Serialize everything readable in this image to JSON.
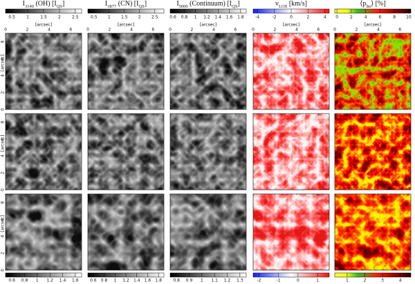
{
  "columns": [
    {
      "title": [
        {
          "text": "I"
        },
        {
          "sub": "3140"
        },
        {
          "text": " (OH) [I"
        },
        {
          "sub": "QS"
        },
        {
          "text": "]"
        }
      ],
      "colormap": "gray",
      "top_colorbar": {
        "range": [
          0.3,
          2.7
        ],
        "ticks": [
          0.5,
          1.0,
          1.5,
          2.0,
          2.5
        ]
      },
      "bottom_colorbar": {
        "range": [
          0.5,
          1.7
        ],
        "ticks": [
          0.6,
          0.8,
          1.0,
          1.2,
          1.4,
          1.6
        ]
      }
    },
    {
      "title": [
        {
          "text": "I"
        },
        {
          "sub": "3877"
        },
        {
          "text": " (CN) [I"
        },
        {
          "sub": "QS"
        },
        {
          "text": "]"
        }
      ],
      "colormap": "gray",
      "top_colorbar": {
        "range": [
          0.3,
          2.8
        ],
        "ticks": [
          0.5,
          1.0,
          1.5,
          2.0,
          2.5
        ]
      },
      "bottom_colorbar": {
        "range": [
          0.5,
          1.9
        ],
        "ticks": [
          0.6,
          0.8,
          1.0,
          1.2,
          1.4,
          1.6,
          1.8
        ]
      }
    },
    {
      "title": [
        {
          "text": "I"
        },
        {
          "sub": "5000"
        },
        {
          "text": " (Continuum) [I"
        },
        {
          "sub": "QS"
        },
        {
          "text": "]"
        }
      ],
      "colormap": "gray",
      "top_colorbar": {
        "range": [
          0.55,
          1.9
        ],
        "ticks": [
          0.6,
          0.8,
          1.0,
          1.2,
          1.4,
          1.6,
          1.8
        ]
      },
      "bottom_colorbar": {
        "range": [
          0.75,
          1.35
        ],
        "ticks": [
          0.8,
          0.9,
          1.0,
          1.1,
          1.2,
          1.3
        ]
      }
    },
    {
      "title": [
        {
          "text": "v"
        },
        {
          "sub": "LOS"
        },
        {
          "text": " [km/s]"
        }
      ],
      "colormap": "bwr",
      "top_colorbar": {
        "range": [
          -4.5,
          4.5
        ],
        "ticks": [
          -4,
          -2,
          0,
          2,
          4
        ]
      },
      "bottom_colorbar": {
        "range": [
          -2.3,
          1.6
        ],
        "ticks": [
          -2,
          -1,
          0,
          1
        ]
      }
    },
    {
      "title": [
        {
          "text": "⟨p"
        },
        {
          "sub": "lin"
        },
        {
          "text": "⟩ [%]"
        }
      ],
      "colormap": "lin",
      "top_colorbar": {
        "range": [
          -0.3,
          10.3
        ],
        "ticks": [
          0,
          2,
          4,
          6,
          8,
          10
        ]
      },
      "bottom_colorbar": {
        "range": [
          0.3,
          4.6
        ],
        "ticks": [
          1,
          2,
          3,
          4
        ]
      }
    }
  ],
  "axes": {
    "xlim": [
      0,
      7
    ],
    "ylim": [
      0,
      9
    ],
    "xticks": [
      0,
      2,
      4,
      6
    ],
    "yticks": [
      0,
      2,
      4,
      6,
      8
    ],
    "xlabel": "[arcsec]",
    "ylabel": "[arcsec]"
  }
}
